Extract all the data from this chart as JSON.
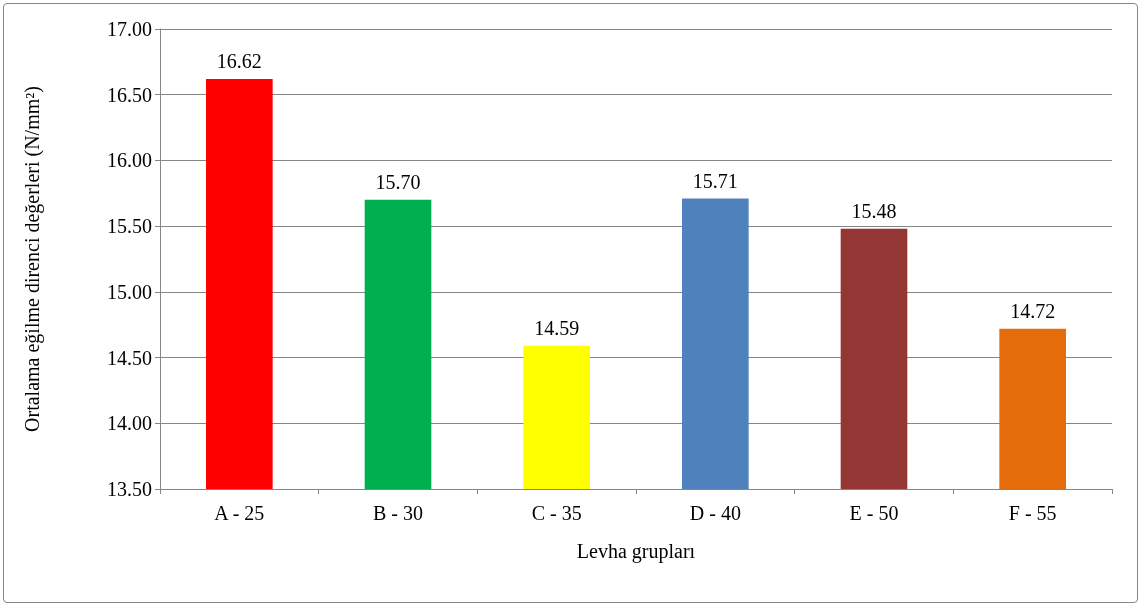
{
  "chart_data": {
    "type": "bar",
    "xlabel": "Levha grupları",
    "ylabel": "Ortalama eğilme direnci değerleri (N/mm²)",
    "categories": [
      "A - 25",
      "B - 30",
      "C - 35",
      "D - 40",
      "E - 50",
      "F - 55"
    ],
    "values": [
      16.62,
      15.7,
      14.59,
      15.71,
      15.48,
      14.72
    ],
    "value_labels": [
      "16.62",
      "15.70",
      "14.59",
      "15.71",
      "15.48",
      "14.72"
    ],
    "colors": [
      "#ff0000",
      "#00b050",
      "#ffff00",
      "#4f81bd",
      "#943634",
      "#e46c0a"
    ],
    "ylim": [
      13.5,
      17.0
    ],
    "yticks": [
      {
        "value": 13.5,
        "label": "13.50"
      },
      {
        "value": 14.0,
        "label": "14.00"
      },
      {
        "value": 14.5,
        "label": "14.50"
      },
      {
        "value": 15.0,
        "label": "15.00"
      },
      {
        "value": 15.5,
        "label": "15.50"
      },
      {
        "value": 16.0,
        "label": "16.00"
      },
      {
        "value": 16.5,
        "label": "16.50"
      },
      {
        "value": 17.0,
        "label": "17.00"
      }
    ],
    "grid": "y"
  }
}
